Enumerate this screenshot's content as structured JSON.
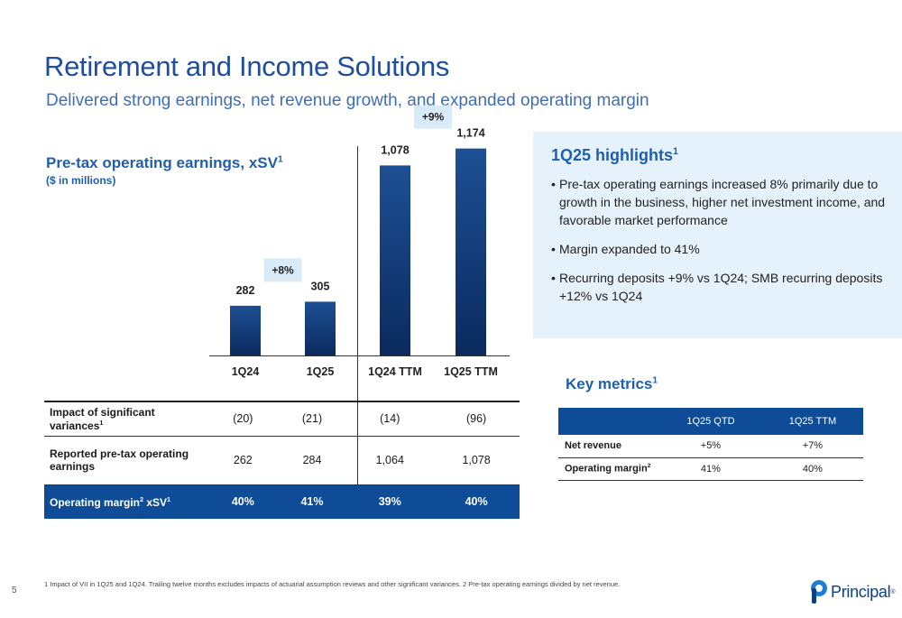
{
  "slide": {
    "title": "Retirement and Income Solutions",
    "subtitle": "Delivered strong earnings, net revenue growth, and expanded operating margin",
    "page_number": "5",
    "footnote": "1 Impact of VII in 1Q25 and 1Q24. Trailing twelve months excludes impacts of actuarial assumption reviews and other significant variances. 2 Pre-tax operating earnings divided by net revenue.",
    "logo_text": "Principal",
    "logo_mark": "®"
  },
  "chart_header": {
    "title": "Pre-tax operating earnings, xSV",
    "title_sup": "1",
    "units": "($ in millions)"
  },
  "chart_data": {
    "type": "bar",
    "title": "Pre-tax operating earnings, xSV1",
    "ylabel": "($ in millions)",
    "categories": [
      "1Q24",
      "1Q25",
      "1Q24 TTM",
      "1Q25 TTM"
    ],
    "values": [
      282,
      305,
      1078,
      1174
    ],
    "data_labels": [
      "282",
      "305",
      "1,078",
      "1,174"
    ],
    "growth_callouts": [
      {
        "label": "+8%",
        "between": [
          "1Q24",
          "1Q25"
        ]
      },
      {
        "label": "+9%",
        "between": [
          "1Q24 TTM",
          "1Q25 TTM"
        ]
      }
    ],
    "ylim": [
      0,
      1300
    ],
    "bar_color": "#0f3f80",
    "callout_color": "#d9ebf8",
    "grid": false
  },
  "stats_table": {
    "rows": [
      {
        "label": "Impact of significant variances",
        "sup": "1",
        "values": [
          "(20)",
          "(21)",
          "(14)",
          "(96)"
        ]
      },
      {
        "label": "Reported pre-tax operating earnings",
        "sup": "",
        "values": [
          "262",
          "284",
          "1,064",
          "1,078"
        ]
      },
      {
        "label": "Operating margin",
        "sup": "2",
        "label_tail": " xSV",
        "sup2": "1",
        "values": [
          "40%",
          "41%",
          "39%",
          "40%"
        ]
      }
    ]
  },
  "highlights": {
    "title": "1Q25 highlights",
    "title_sup": "1",
    "items": [
      "Pre-tax operating earnings increased 8% primarily due to growth in the business, higher net investment income, and favorable market performance",
      "Margin expanded to 41%",
      "Recurring deposits +9% vs 1Q24; SMB recurring deposits +12% vs 1Q24"
    ]
  },
  "key_metrics": {
    "title": "Key metrics",
    "title_sup": "1",
    "columns": [
      "1Q25 QTD",
      "1Q25 TTM"
    ],
    "rows": [
      {
        "label": "Net revenue",
        "sup": "",
        "values": [
          "+5%",
          "+7%"
        ]
      },
      {
        "label": "Operating margin",
        "sup": "2",
        "values": [
          "41%",
          "40%"
        ]
      }
    ]
  },
  "colors": {
    "title_blue": "#1f4e9c",
    "accent_blue": "#1f5fae",
    "dark_blue": "#0f4c97",
    "highlight_bg": "#e6f2fb"
  }
}
